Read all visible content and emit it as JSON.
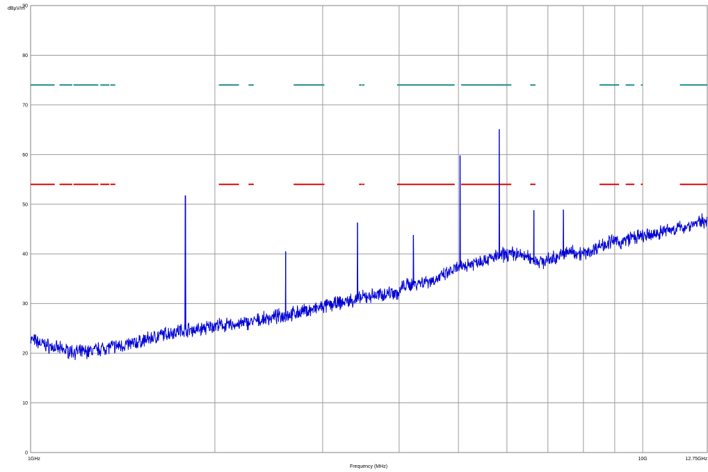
{
  "chart_data": {
    "type": "line",
    "title": "",
    "ylabel": "dBµV/m",
    "xlabel": "Frequency (MHz)",
    "x_scale": "log",
    "xlim": [
      1000,
      12750
    ],
    "ylim": [
      0,
      90
    ],
    "grid": true,
    "y_ticks": [
      0,
      10,
      20,
      30,
      40,
      50,
      60,
      70,
      80,
      90
    ],
    "y_tick_labels": [
      "0",
      "10",
      "20",
      "30",
      "40",
      "50",
      "60",
      "70",
      "80",
      "90"
    ],
    "x_tick_values": [
      1000,
      10000,
      12750
    ],
    "x_tick_labels": [
      "1GHz",
      "10G",
      "12.75GHz"
    ],
    "x_gridlines": [
      1000,
      2000,
      3000,
      4000,
      5000,
      6000,
      7000,
      8000,
      9000,
      10000,
      12750
    ],
    "limit_lines": [
      {
        "value": 74,
        "color": "#1a8c8c",
        "segments_mhz": [
          [
            1000,
            1095
          ],
          [
            1115,
            1170
          ],
          [
            1175,
            1290
          ],
          [
            1300,
            1345
          ],
          [
            1350,
            1375
          ],
          [
            2030,
            2190
          ],
          [
            2270,
            2315
          ],
          [
            2690,
            3020
          ],
          [
            3440,
            3475
          ],
          [
            3480,
            3510
          ],
          [
            3970,
            4930
          ],
          [
            5050,
            6100
          ],
          [
            6550,
            6680
          ],
          [
            8500,
            9150
          ],
          [
            9380,
            9690
          ],
          [
            9930,
            10000
          ],
          [
            11500,
            12750
          ]
        ]
      },
      {
        "value": 54,
        "color": "#e00000",
        "segments_mhz": [
          [
            1000,
            1095
          ],
          [
            1115,
            1170
          ],
          [
            1175,
            1290
          ],
          [
            1300,
            1345
          ],
          [
            1350,
            1375
          ],
          [
            2030,
            2190
          ],
          [
            2270,
            2315
          ],
          [
            2690,
            3020
          ],
          [
            3440,
            3475
          ],
          [
            3480,
            3510
          ],
          [
            3970,
            4930
          ],
          [
            5050,
            6100
          ],
          [
            6550,
            6680
          ],
          [
            8500,
            9150
          ],
          [
            9380,
            9690
          ],
          [
            9930,
            10000
          ],
          [
            11500,
            12750
          ]
        ]
      }
    ],
    "series": [
      {
        "color": "#0000d4",
        "x": [
          1000,
          1050,
          1100,
          1150,
          1200,
          1250,
          1300,
          1350,
          1400,
          1450,
          1500,
          1550,
          1600,
          1650,
          1700,
          1750,
          1800,
          1850,
          1900,
          1950,
          2000,
          2100,
          2200,
          2300,
          2400,
          2500,
          2600,
          2700,
          2800,
          2900,
          3000,
          3100,
          3200,
          3300,
          3400,
          3500,
          3600,
          3700,
          3800,
          3900,
          4000,
          4050,
          4100,
          4200,
          4300,
          4400,
          4500,
          4600,
          4700,
          4800,
          4900,
          5000,
          5200,
          5400,
          5600,
          5800,
          6000,
          6200,
          6400,
          6600,
          6800,
          7000,
          7200,
          7400,
          7600,
          7800,
          8000,
          8200,
          8400,
          8600,
          8800,
          9000,
          9200,
          9400,
          9600,
          9800,
          10000,
          10200,
          10500,
          10800,
          11100,
          11400,
          11700,
          12000,
          12300,
          12500,
          12750
        ],
        "y": [
          22.8,
          21.8,
          21.0,
          20.5,
          20.2,
          20.4,
          20.9,
          21.3,
          21.5,
          21.8,
          22.2,
          22.8,
          23.3,
          23.8,
          24.2,
          24.6,
          24.8,
          24.7,
          24.9,
          25.2,
          25.6,
          25.6,
          25.9,
          26.3,
          26.8,
          27.3,
          27.6,
          28.0,
          28.5,
          28.8,
          29.3,
          29.8,
          30.1,
          30.5,
          30.8,
          31.2,
          31.6,
          31.7,
          32.0,
          32.4,
          31.8,
          33.5,
          33.6,
          33.9,
          34.2,
          34.5,
          34.6,
          34.9,
          35.5,
          36.0,
          36.7,
          37.2,
          37.9,
          38.6,
          39.0,
          39.5,
          40.0,
          40.0,
          39.6,
          39.0,
          38.4,
          38.7,
          39.3,
          39.8,
          40.5,
          40.3,
          40.0,
          40.4,
          41.3,
          41.9,
          42.3,
          42.6,
          42.2,
          42.8,
          43.4,
          43.3,
          43.5,
          43.6,
          44.0,
          44.6,
          44.9,
          45.1,
          45.4,
          45.9,
          46.3,
          46.6,
          46.8
        ]
      }
    ],
    "spikes": [
      {
        "x": 1790,
        "y": 51.7
      },
      {
        "x": 2610,
        "y": 40.5
      },
      {
        "x": 3420,
        "y": 46.3
      },
      {
        "x": 4220,
        "y": 43.8
      },
      {
        "x": 5030,
        "y": 59.8
      },
      {
        "x": 5830,
        "y": 65.1
      },
      {
        "x": 6640,
        "y": 48.8
      },
      {
        "x": 7420,
        "y": 48.9
      }
    ]
  }
}
